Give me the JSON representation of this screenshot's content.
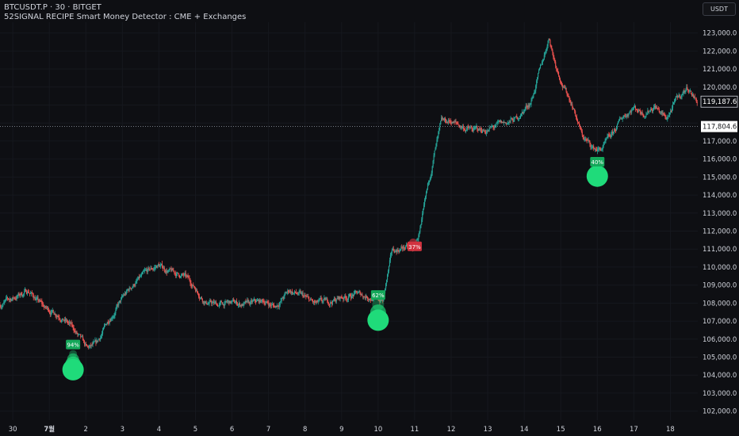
{
  "header": {
    "symbol_line": "BTCUSDT.P · 30 · BITGET",
    "indicator_line": "52SIGNAL RECIPE Smart Money Detector : CME + Exchanges"
  },
  "currency_label": "USDT",
  "colors": {
    "background": "#0e0f13",
    "up_candle": "#26a69a",
    "down_candle": "#ef5350",
    "signal_green": "#1fdb7a",
    "signal_label_green": "#14a85a",
    "signal_label_red": "#d1333f",
    "axis_text": "#d1d4dc",
    "grid": "#16181e"
  },
  "chart_data": {
    "type": "candlestick",
    "title": "BTCUSDT.P · 30 · BITGET",
    "ylim": [
      101500,
      123600
    ],
    "y_ticks": [
      "102,000.0",
      "103,000.0",
      "104,000.0",
      "105,000.0",
      "106,000.0",
      "107,000.0",
      "108,000.0",
      "109,000.0",
      "110,000.0",
      "111,000.0",
      "112,000.0",
      "113,000.0",
      "114,000.0",
      "115,000.0",
      "116,000.0",
      "117,000.0",
      "118,000.0",
      "119,000.0",
      "120,000.0",
      "121,000.0",
      "122,000.0",
      "123,000.0"
    ],
    "y_tick_values": [
      102000,
      103000,
      104000,
      105000,
      106000,
      107000,
      108000,
      109000,
      110000,
      111000,
      112000,
      113000,
      114000,
      115000,
      116000,
      117000,
      118000,
      119000,
      120000,
      121000,
      122000,
      123000
    ],
    "x_tick_labels": [
      "30",
      "7월",
      "2",
      "3",
      "4",
      "5",
      "6",
      "7",
      "8",
      "9",
      "10",
      "11",
      "12",
      "13",
      "14",
      "15",
      "16",
      "17",
      "18"
    ],
    "x_tick_days": [
      0,
      1,
      2,
      3,
      4,
      5,
      6,
      7,
      8,
      9,
      10,
      11,
      12,
      13,
      14,
      15,
      16,
      17,
      18
    ],
    "x_range_days": [
      -0.35,
      18.75
    ],
    "price_path": [
      [
        -0.35,
        107900
      ],
      [
        0.15,
        108400
      ],
      [
        0.45,
        108700
      ],
      [
        0.9,
        107700
      ],
      [
        1.3,
        107400
      ],
      [
        1.7,
        106500
      ],
      [
        2.05,
        105400
      ],
      [
        2.3,
        105600
      ],
      [
        2.7,
        107300
      ],
      [
        3.05,
        108300
      ],
      [
        3.35,
        109100
      ],
      [
        3.8,
        109800
      ],
      [
        4.0,
        110100
      ],
      [
        4.35,
        109700
      ],
      [
        4.7,
        109500
      ],
      [
        5.0,
        108900
      ],
      [
        5.3,
        108100
      ],
      [
        5.6,
        107900
      ],
      [
        6.0,
        108000
      ],
      [
        6.5,
        107900
      ],
      [
        6.9,
        108100
      ],
      [
        7.2,
        107800
      ],
      [
        7.6,
        108700
      ],
      [
        7.9,
        108400
      ],
      [
        8.3,
        107900
      ],
      [
        8.6,
        108000
      ],
      [
        9.0,
        108300
      ],
      [
        9.4,
        108500
      ],
      [
        9.75,
        108400
      ],
      [
        10.15,
        108100
      ],
      [
        10.4,
        110800
      ],
      [
        10.7,
        111100
      ],
      [
        11.0,
        111000
      ],
      [
        11.2,
        112200
      ],
      [
        11.35,
        114000
      ],
      [
        11.55,
        116200
      ],
      [
        11.75,
        117900
      ],
      [
        12.0,
        118100
      ],
      [
        12.3,
        117800
      ],
      [
        12.6,
        117600
      ],
      [
        13.0,
        117600
      ],
      [
        13.4,
        117900
      ],
      [
        13.8,
        118200
      ],
      [
        14.2,
        119200
      ],
      [
        14.5,
        121200
      ],
      [
        14.7,
        122800
      ],
      [
        14.85,
        121500
      ],
      [
        15.1,
        120000
      ],
      [
        15.35,
        119000
      ],
      [
        15.6,
        117300
      ],
      [
        15.9,
        116600
      ],
      [
        16.1,
        116500
      ],
      [
        16.4,
        117200
      ],
      [
        16.7,
        118300
      ],
      [
        17.0,
        118900
      ],
      [
        17.3,
        118600
      ],
      [
        17.6,
        119000
      ],
      [
        17.9,
        118200
      ],
      [
        18.2,
        119300
      ],
      [
        18.5,
        120000
      ],
      [
        18.75,
        119200
      ]
    ],
    "current_price": 117804.6,
    "current_price_label": "117,804.6",
    "last_price": 119187.6,
    "last_price_label": "119,187.6",
    "signals": [
      {
        "day": 1.65,
        "price": 104300,
        "label": "94%",
        "color": "green",
        "dots": 4,
        "label_price": 105700
      },
      {
        "day": 10.0,
        "price": 107050,
        "label": "62%",
        "color": "green",
        "dots": 3,
        "label_price": 108450
      },
      {
        "day": 11.0,
        "price": 111100,
        "label": "37%",
        "color": "red",
        "dots": 1,
        "label_price": 111150
      },
      {
        "day": 16.0,
        "price": 115050,
        "label": "40%",
        "color": "green",
        "dots": 2,
        "label_price": 115850
      }
    ]
  }
}
